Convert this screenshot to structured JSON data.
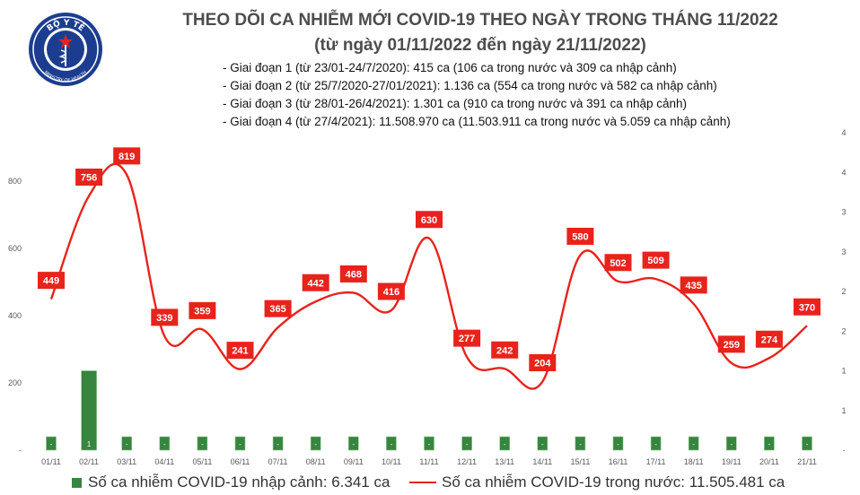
{
  "logo": {
    "arc_text": "BỘ Y TẾ",
    "bottom_text": "MINISTRY OF HEALTH"
  },
  "title": "THEO DÕI CA NHIỄM MỚI COVID-19 THEO NGÀY TRONG THÁNG 11/2022",
  "subtitle": "(từ ngày 01/11/2022 đến ngày 21/11/2022)",
  "notes": [
    "- Giai đoạn 1 (từ 23/01-24/7/2020): 415 ca (106 ca trong nước và 309 ca nhập cảnh)",
    "- Giai đoạn 2 (từ 25/7/2020-27/01/2021): 1.136 ca (554 ca trong nước và 582 ca nhập cảnh)",
    "- Giai đoạn 3 (từ 28/01-26/4/2021): 1.301 ca (910 ca trong nước và 391 ca nhập cảnh)",
    "- Giai đoạn 4 (từ 27/4/2021): 11.508.970 ca (11.503.911 ca trong nước và 5.059 ca nhập cảnh)"
  ],
  "legend": {
    "bar_label": "Số ca nhiễm COVID-19 nhập cảnh: 6.341 ca",
    "line_label": "Số ca nhiễm COVID-19 trong nước: 11.505.481 ca"
  },
  "colors": {
    "line": "#e8231c",
    "bar": "#37853f",
    "bar_border": "#8bc48e",
    "axis_text": "#595959"
  },
  "chart_data": {
    "type": "bar+line",
    "categories": [
      "01/11",
      "02/11",
      "03/11",
      "04/11",
      "05/11",
      "06/11",
      "07/11",
      "08/11",
      "09/11",
      "10/11",
      "11/11",
      "12/11",
      "13/11",
      "14/11",
      "15/11",
      "16/11",
      "17/11",
      "18/11",
      "19/11",
      "20/11",
      "21/11"
    ],
    "series": [
      {
        "name": "Số ca nhiễm COVID-19 trong nước: 11.505.481 ca",
        "type": "line",
        "axis": "left",
        "values": [
          449,
          756,
          819,
          339,
          359,
          241,
          365,
          442,
          468,
          416,
          630,
          277,
          242,
          204,
          580,
          502,
          509,
          435,
          259,
          274,
          370
        ]
      },
      {
        "name": "Số ca nhiễm COVID-19 nhập cảnh: 6.341 ca",
        "type": "bar",
        "axis": "right",
        "values": [
          0,
          1,
          0,
          0,
          0,
          0,
          0,
          0,
          0,
          0,
          0,
          0,
          0,
          0,
          0,
          0,
          0,
          0,
          0,
          0,
          0
        ],
        "labels": [
          "-",
          "1",
          "-",
          "-",
          "-",
          "-",
          "-",
          "-",
          "-",
          "-",
          "-",
          "-",
          "-",
          "-",
          "-",
          "-",
          "-",
          "-",
          "-",
          "-",
          "-"
        ]
      }
    ],
    "left_axis": {
      "ticks": [
        "-",
        "200",
        "400",
        "600",
        "800"
      ],
      "values": [
        0,
        200,
        400,
        600,
        800
      ],
      "ylim": [
        0,
        800
      ]
    },
    "right_axis": {
      "ticks": [
        "-",
        "1",
        "1",
        "2",
        "2",
        "3",
        "3",
        "4",
        "4"
      ],
      "values": [
        0,
        0.5,
        1,
        1.5,
        2,
        2.5,
        3,
        3.5,
        4
      ],
      "ylim": [
        0,
        4
      ]
    },
    "grid": false,
    "legend_position": "bottom"
  }
}
